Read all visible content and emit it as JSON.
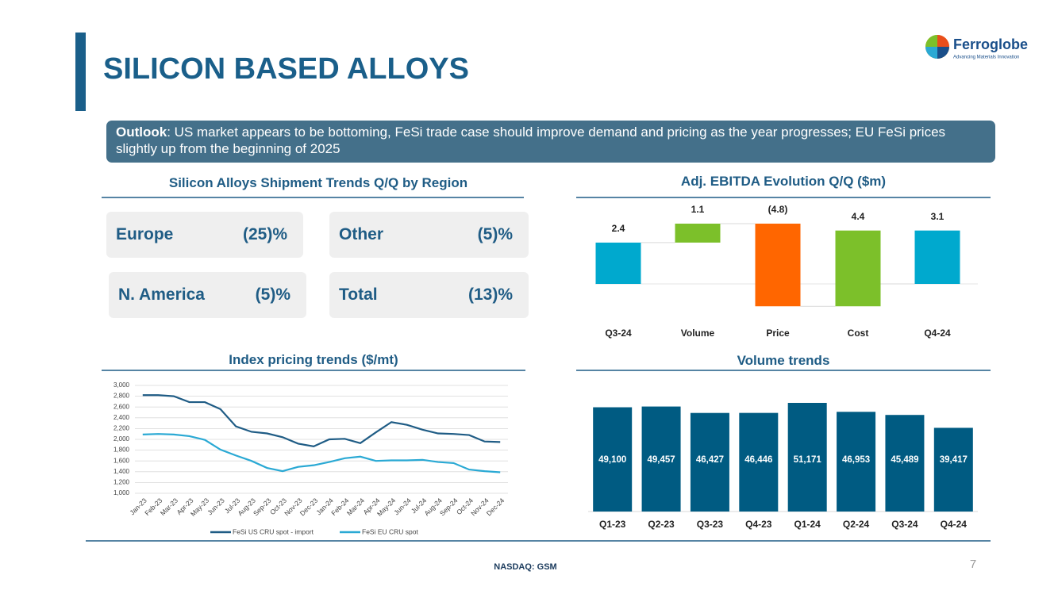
{
  "title": "SILICON BASED ALLOYS",
  "logo": {
    "name": "Ferroglobe",
    "tagline": "Advancing Materials Innovation"
  },
  "outlook": {
    "label": "Outlook",
    "text": ": US market appears to be bottoming, FeSi trade case should improve demand and pricing as the year progresses; EU FeSi prices slightly up from the beginning of 2025"
  },
  "shipments": {
    "title": "Silicon Alloys Shipment Trends Q/Q by Region",
    "items": [
      {
        "region": "Europe",
        "change": "(25)%"
      },
      {
        "region": "Other",
        "change": "(5)%"
      },
      {
        "region": "N. America",
        "change": "(5)%"
      },
      {
        "region": "Total",
        "change": "(13)%"
      }
    ]
  },
  "footer": "NASDAQ: GSM",
  "page": "7",
  "chart_data": [
    {
      "type": "waterfall",
      "title": "Adj. EBITDA Evolution Q/Q ($m)",
      "categories": [
        "Q3-24",
        "Volume",
        "Price",
        "Cost",
        "Q4-24"
      ],
      "values": [
        2.4,
        1.1,
        -4.8,
        4.4,
        3.1
      ],
      "value_labels": [
        "2.4",
        "1.1",
        "(4.8)",
        "4.4",
        "3.1"
      ],
      "colors": [
        "#00a9ce",
        "#7cc02a",
        "#ff6600",
        "#7cc02a",
        "#00a9ce"
      ]
    },
    {
      "type": "line",
      "title": "Index pricing trends ($/mt)",
      "categories": [
        "Jan-23",
        "Feb-23",
        "Mar-23",
        "Apr-23",
        "May-23",
        "Jun-23",
        "Jul-23",
        "Aug-23",
        "Sep-23",
        "Oct-23",
        "Nov-23",
        "Dec-23",
        "Jan-24",
        "Feb-24",
        "Mar-24",
        "Apr-24",
        "May-24",
        "Jun-24",
        "Jul-24",
        "Aug-24",
        "Sep-24",
        "Oct-24",
        "Nov-24",
        "Dec-24"
      ],
      "series": [
        {
          "name": "FeSi US CRU spot - import",
          "color": "#1f5c85",
          "values": [
            2820,
            2820,
            2800,
            2690,
            2690,
            2560,
            2240,
            2140,
            2110,
            2040,
            1920,
            1870,
            2000,
            2010,
            1930,
            2130,
            2320,
            2270,
            2180,
            2110,
            2100,
            2080,
            1960,
            1950
          ]
        },
        {
          "name": "FeSi EU CRU spot",
          "color": "#2aa9d4",
          "values": [
            2090,
            2100,
            2090,
            2060,
            1990,
            1810,
            1700,
            1600,
            1470,
            1410,
            1490,
            1520,
            1580,
            1650,
            1680,
            1600,
            1610,
            1610,
            1620,
            1580,
            1560,
            1440,
            1410,
            1390
          ]
        }
      ],
      "ylim": [
        1000,
        3000
      ],
      "yticks": [
        {
          "value": 1000,
          "label": "1,000"
        },
        {
          "value": 1200,
          "label": "1,200"
        },
        {
          "value": 1400,
          "label": "1,400"
        },
        {
          "value": 1600,
          "label": "1,600"
        },
        {
          "value": 1800,
          "label": "1,800"
        },
        {
          "value": 2000,
          "label": "2,000"
        },
        {
          "value": 2200,
          "label": "2,200"
        },
        {
          "value": 2400,
          "label": "2,400"
        },
        {
          "value": 2600,
          "label": "2,600"
        },
        {
          "value": 2800,
          "label": "2,800"
        },
        {
          "value": 3000,
          "label": "3,000"
        }
      ],
      "grid": true,
      "legend": "bottom"
    },
    {
      "type": "bar",
      "title": "Volume trends",
      "categories": [
        "Q1-23",
        "Q2-23",
        "Q3-23",
        "Q4-23",
        "Q1-24",
        "Q2-24",
        "Q3-24",
        "Q4-24"
      ],
      "values": [
        49100,
        49457,
        46427,
        46446,
        51171,
        46953,
        45489,
        39417
      ],
      "value_labels": [
        "49,100",
        "49,457",
        "46,427",
        "46,446",
        "51,171",
        "46,953",
        "45,489",
        "39,417"
      ],
      "color": "#005b82"
    }
  ]
}
